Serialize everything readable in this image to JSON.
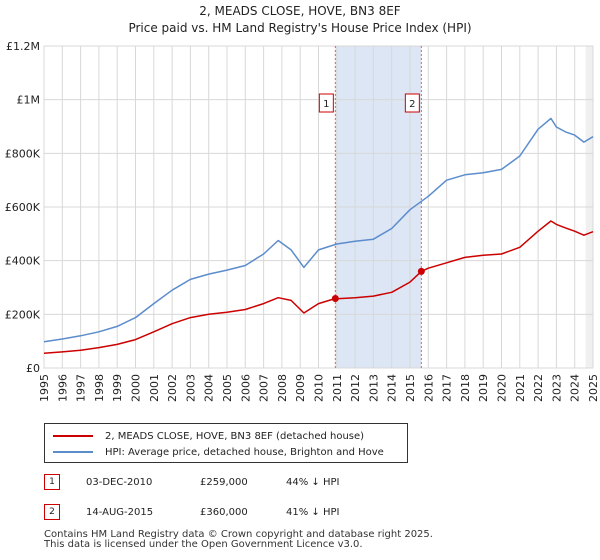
{
  "title_line1": "2, MEADS CLOSE, HOVE, BN3 8EF",
  "title_line2": "Price paid vs. HM Land Registry's House Price Index (HPI)",
  "legend": {
    "series1": "2, MEADS CLOSE, HOVE, BN3 8EF (detached house)",
    "series2": "HPI: Average price, detached house, Brighton and Hove"
  },
  "transactions": [
    {
      "num": "1",
      "date": "03-DEC-2010",
      "price": "£259,000",
      "hpi": "44% ↓ HPI"
    },
    {
      "num": "2",
      "date": "14-AUG-2015",
      "price": "£360,000",
      "hpi": "41% ↓ HPI"
    }
  ],
  "footer": {
    "line1": "Contains HM Land Registry data © Crown copyright and database right 2025.",
    "line2": "This data is licensed under the Open Government Licence v3.0."
  },
  "colors": {
    "property": "#cc0000",
    "hpi": "#5b8ccc",
    "shade": "#dde6f5",
    "vline": "#e06060"
  },
  "chart_data": {
    "type": "line",
    "title": "Price paid vs. HM Land Registry's House Price Index (HPI)",
    "x_ticks": [
      "1995",
      "1996",
      "1997",
      "1998",
      "1999",
      "2000",
      "2001",
      "2002",
      "2003",
      "2004",
      "2005",
      "2006",
      "2007",
      "2008",
      "2009",
      "2010",
      "2011",
      "2012",
      "2013",
      "2014",
      "2015",
      "2016",
      "2017",
      "2018",
      "2019",
      "2020",
      "2021",
      "2022",
      "2023",
      "2024",
      "2025"
    ],
    "y_ticks": [
      "£0",
      "£200K",
      "£400K",
      "£600K",
      "£800K",
      "£1M",
      "£1.2M"
    ],
    "xlim": [
      1995,
      2025
    ],
    "ylim": [
      0,
      1200000
    ],
    "grid": true,
    "shaded_region": [
      2010.92,
      2015.62
    ],
    "markers": [
      {
        "label": "1",
        "x": 2010.92,
        "y": 259000
      },
      {
        "label": "2",
        "x": 2015.62,
        "y": 360000
      }
    ],
    "series": [
      {
        "name": "2, MEADS CLOSE, HOVE, BN3 8EF (detached house)",
        "x": [
          1995,
          1996,
          1997,
          1998,
          1999,
          2000,
          2001,
          2002,
          2003,
          2004,
          2005,
          2006,
          2007,
          2007.8,
          2008.5,
          2009.2,
          2010,
          2010.92,
          2011,
          2012,
          2013,
          2014,
          2015,
          2015.62,
          2016,
          2017,
          2018,
          2019,
          2020,
          2021,
          2022,
          2022.7,
          2023,
          2023.5,
          2024,
          2024.5,
          2025
        ],
        "values": [
          55000,
          60000,
          66000,
          76000,
          88000,
          106000,
          135000,
          165000,
          188000,
          200000,
          208000,
          218000,
          240000,
          262000,
          252000,
          205000,
          240000,
          259000,
          258000,
          262000,
          268000,
          282000,
          320000,
          360000,
          372000,
          392000,
          412000,
          420000,
          425000,
          450000,
          510000,
          548000,
          535000,
          522000,
          510000,
          495000,
          508000
        ]
      },
      {
        "name": "HPI: Average price, detached house, Brighton and Hove",
        "x": [
          1995,
          1996,
          1997,
          1998,
          1999,
          2000,
          2001,
          2002,
          2003,
          2004,
          2005,
          2006,
          2007,
          2007.8,
          2008.5,
          2009.2,
          2010,
          2011,
          2012,
          2013,
          2014,
          2015,
          2016,
          2017,
          2018,
          2019,
          2020,
          2021,
          2022,
          2022.7,
          2023,
          2023.5,
          2024,
          2024.5,
          2025
        ],
        "values": [
          98000,
          108000,
          120000,
          135000,
          155000,
          188000,
          240000,
          290000,
          330000,
          350000,
          365000,
          382000,
          425000,
          475000,
          440000,
          375000,
          440000,
          462000,
          472000,
          480000,
          520000,
          590000,
          640000,
          700000,
          720000,
          728000,
          740000,
          790000,
          890000,
          930000,
          898000,
          880000,
          868000,
          842000,
          862000
        ]
      }
    ]
  }
}
